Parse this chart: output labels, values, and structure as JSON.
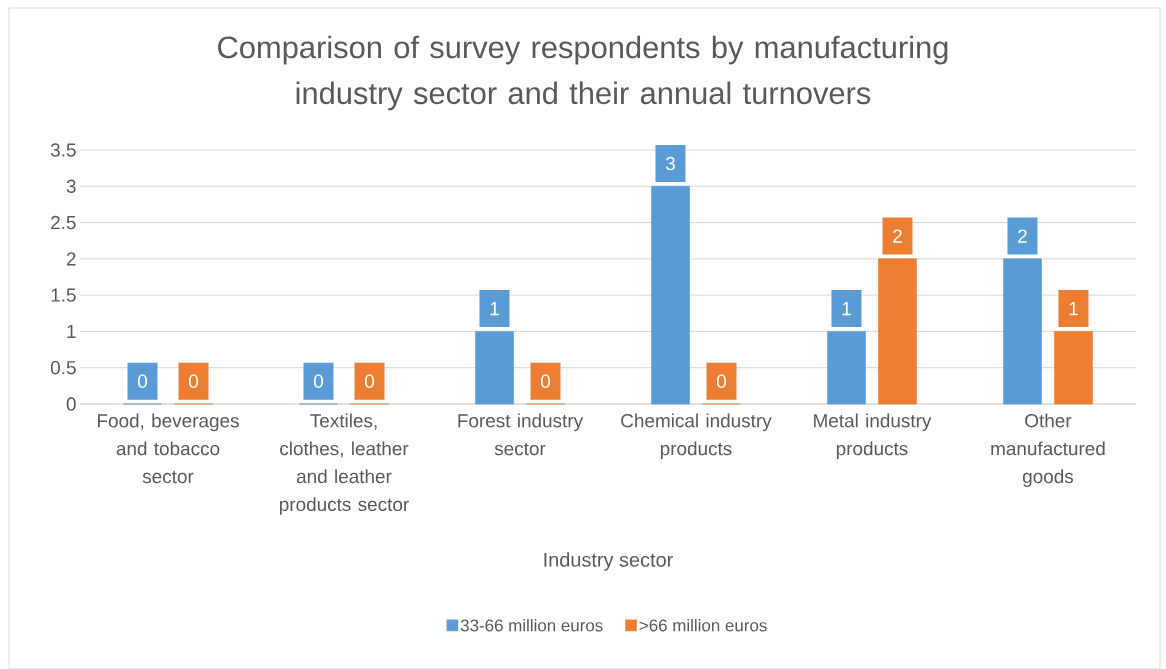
{
  "chart_data": {
    "type": "bar",
    "title": "Comparison of survey respondents by manufacturing industry sector and their annual turnovers",
    "xlabel": "Industry sector",
    "categories": [
      "Food, beverages and tobacco sector",
      "Textiles, clothes, leather and leather products sector",
      "Forest industry sector",
      "Chemical industry products",
      "Metal industry products",
      "Other manufactured goods"
    ],
    "series": [
      {
        "name": "33-66 million euros",
        "color": "#5b9bd5",
        "values": [
          0,
          0,
          1,
          3,
          1,
          2
        ]
      },
      {
        "name": ">66 million euros",
        "color": "#ed7d31",
        "values": [
          0,
          0,
          0,
          0,
          2,
          1
        ]
      }
    ],
    "ylim": [
      0,
      3.5
    ],
    "yticks": [
      0,
      0.5,
      1,
      1.5,
      2,
      2.5,
      3,
      3.5
    ],
    "grid": "y",
    "legend": "bottom",
    "data_labels": true
  }
}
